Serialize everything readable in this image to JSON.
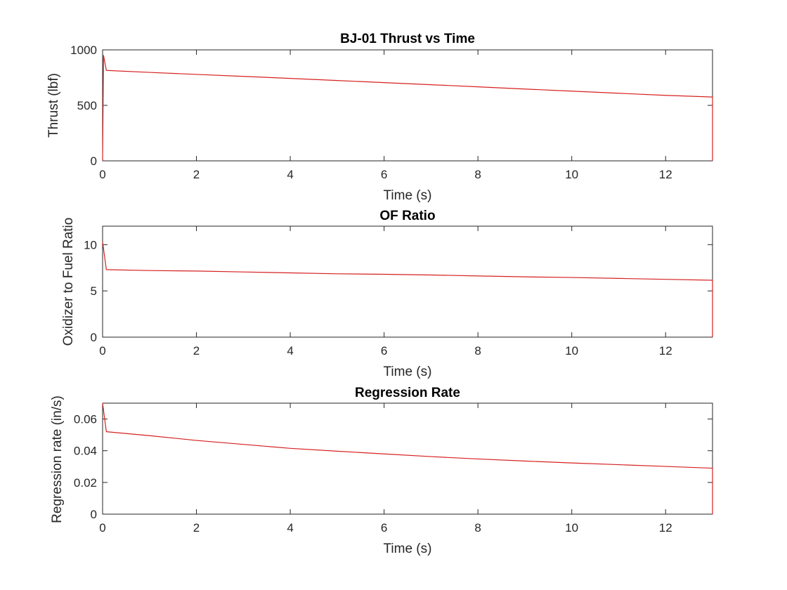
{
  "chart_data": [
    {
      "type": "line",
      "title": "BJ-01 Thrust vs Time",
      "xlabel": "Time (s)",
      "ylabel": "Thrust (lbf)",
      "xlim": [
        0,
        13
      ],
      "ylim": [
        0,
        1000
      ],
      "xticks": [
        "0",
        "2",
        "4",
        "6",
        "8",
        "10",
        "12"
      ],
      "yticks": [
        "0",
        "500",
        "1000"
      ],
      "grid": false,
      "color": "#d62020",
      "series": [
        {
          "x": [
            0,
            0.02,
            0.08,
            1,
            2,
            3,
            4,
            5,
            6,
            7,
            8,
            9,
            10,
            11,
            12,
            13,
            13
          ],
          "y": [
            0,
            950,
            815,
            797,
            779,
            761,
            743,
            724,
            705,
            686,
            667,
            647,
            628,
            609,
            590,
            575,
            0
          ]
        }
      ]
    },
    {
      "type": "line",
      "title": "OF Ratio",
      "xlabel": "Time (s)",
      "ylabel": "Oxidizer to Fuel Ratio",
      "xlim": [
        0,
        13
      ],
      "ylim": [
        0,
        12
      ],
      "xticks": [
        "0",
        "2",
        "4",
        "6",
        "8",
        "10",
        "12"
      ],
      "yticks": [
        "0",
        "5",
        "10"
      ],
      "grid": false,
      "color": "#d62020",
      "series": [
        {
          "x": [
            0,
            0.08,
            1,
            2,
            3,
            4,
            5,
            6,
            7,
            8,
            9,
            10,
            11,
            12,
            13,
            13
          ],
          "y": [
            10.3,
            7.3,
            7.2,
            7.15,
            7.05,
            6.95,
            6.85,
            6.8,
            6.72,
            6.62,
            6.52,
            6.45,
            6.35,
            6.25,
            6.15,
            0
          ]
        }
      ]
    },
    {
      "type": "line",
      "title": "Regression Rate",
      "xlabel": "Time (s)",
      "ylabel": "Regression rate (in/s)",
      "xlim": [
        0,
        13
      ],
      "ylim": [
        0,
        0.07
      ],
      "xticks": [
        "0",
        "2",
        "4",
        "6",
        "8",
        "10",
        "12"
      ],
      "yticks": [
        "0",
        "0.02",
        "0.04",
        "0.06"
      ],
      "grid": false,
      "color": "#d62020",
      "series": [
        {
          "x": [
            0,
            0.08,
            1,
            2,
            3,
            4,
            5,
            6,
            7,
            8,
            9,
            10,
            11,
            12,
            13,
            13
          ],
          "y": [
            0.07,
            0.052,
            0.0495,
            0.0465,
            0.044,
            0.0415,
            0.0397,
            0.038,
            0.0363,
            0.0348,
            0.0335,
            0.0323,
            0.0312,
            0.0301,
            0.029,
            0
          ]
        }
      ]
    }
  ]
}
